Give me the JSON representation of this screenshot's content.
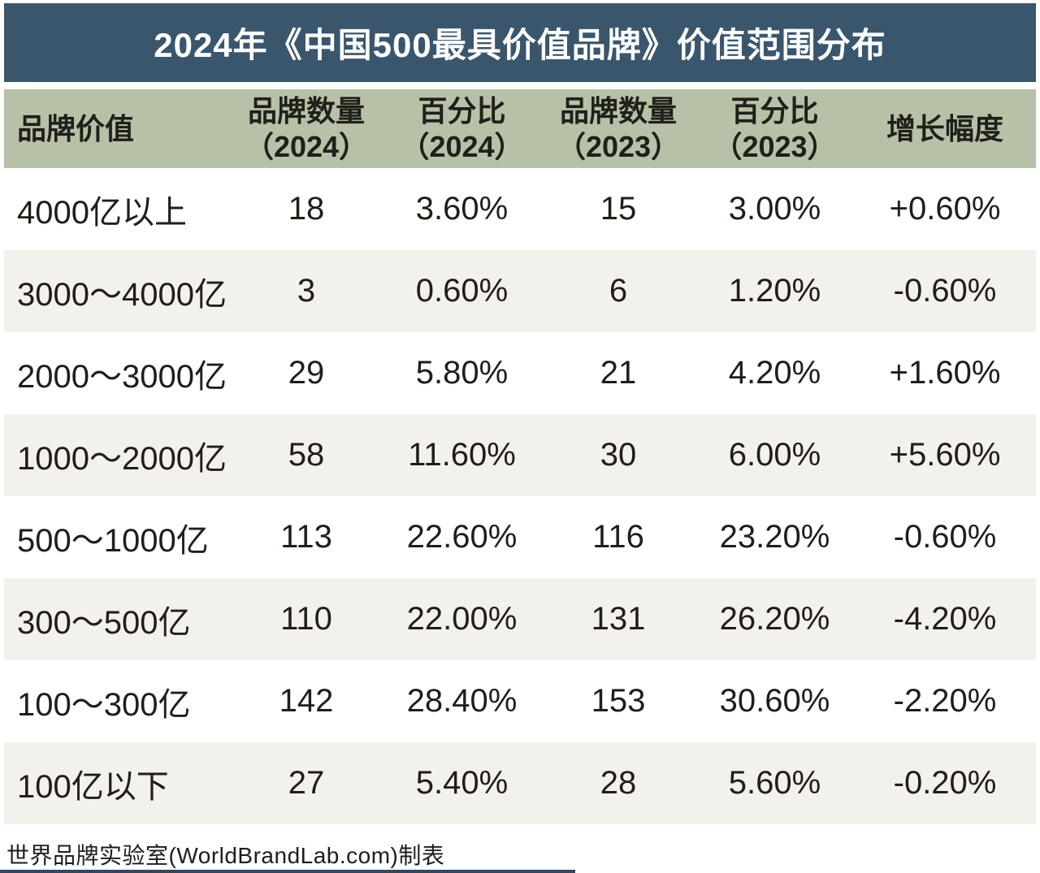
{
  "title": "2024年《中国500最具价值品牌》价值范围分布",
  "table": {
    "headers": [
      {
        "line1": "品牌价值",
        "line2": ""
      },
      {
        "line1": "品牌数量",
        "line2": "（2024）"
      },
      {
        "line1": "百分比",
        "line2": "（2024）"
      },
      {
        "line1": "品牌数量",
        "line2": "（2023）"
      },
      {
        "line1": "百分比",
        "line2": "（2023）"
      },
      {
        "line1": "增长幅度",
        "line2": ""
      }
    ],
    "rows": [
      [
        "4000亿以上",
        "18",
        "3.60%",
        "15",
        "3.00%",
        "+0.60%"
      ],
      [
        "3000～4000亿",
        "3",
        "0.60%",
        "6",
        "1.20%",
        "-0.60%"
      ],
      [
        "2000～3000亿",
        "29",
        "5.80%",
        "21",
        "4.20%",
        "+1.60%"
      ],
      [
        "1000～2000亿",
        "58",
        "11.60%",
        "30",
        "6.00%",
        "+5.60%"
      ],
      [
        "500～1000亿",
        "113",
        "22.60%",
        "116",
        "23.20%",
        "-0.60%"
      ],
      [
        "300～500亿",
        "110",
        "22.00%",
        "131",
        "26.20%",
        "-4.20%"
      ],
      [
        "100～300亿",
        "142",
        "28.40%",
        "153",
        "30.60%",
        "-2.20%"
      ],
      [
        "100亿以下",
        "27",
        "5.40%",
        "28",
        "5.60%",
        "-0.20%"
      ]
    ]
  },
  "footer": {
    "credit": "世界品牌实验室(WorldBrandLab.com)制表"
  },
  "colors": {
    "title_bar_bg": "#3a566d",
    "title_text": "#ffffff",
    "header_bg": "#b7c1a7",
    "row_bg": "#ffffff",
    "row_alt_bg": "#f2f1ec",
    "body_text": "#211d18",
    "bottom_strip": "#32495c"
  },
  "chart_data": {
    "type": "table",
    "title": "2024年《中国500最具价值品牌》价值范围分布",
    "columns": [
      "品牌价值",
      "品牌数量（2024）",
      "百分比（2024）",
      "品牌数量（2023）",
      "百分比（2023）",
      "增长幅度"
    ],
    "rows": [
      {
        "品牌价值": "4000亿以上",
        "品牌数量_2024": 18,
        "百分比_2024": "3.60%",
        "品牌数量_2023": 15,
        "百分比_2023": "3.00%",
        "增长幅度": "+0.60%"
      },
      {
        "品牌价值": "3000～4000亿",
        "品牌数量_2024": 3,
        "百分比_2024": "0.60%",
        "品牌数量_2023": 6,
        "百分比_2023": "1.20%",
        "增长幅度": "-0.60%"
      },
      {
        "品牌价值": "2000～3000亿",
        "品牌数量_2024": 29,
        "百分比_2024": "5.80%",
        "品牌数量_2023": 21,
        "百分比_2023": "4.20%",
        "增长幅度": "+1.60%"
      },
      {
        "品牌价值": "1000～2000亿",
        "品牌数量_2024": 58,
        "百分比_2024": "11.60%",
        "品牌数量_2023": 30,
        "百分比_2023": "6.00%",
        "增长幅度": "+5.60%"
      },
      {
        "品牌价值": "500～1000亿",
        "品牌数量_2024": 113,
        "百分比_2024": "22.60%",
        "品牌数量_2023": 116,
        "百分比_2023": "23.20%",
        "增长幅度": "-0.60%"
      },
      {
        "品牌价值": "300～500亿",
        "品牌数量_2024": 110,
        "百分比_2024": "22.00%",
        "品牌数量_2023": 131,
        "百分比_2023": "26.20%",
        "增长幅度": "-4.20%"
      },
      {
        "品牌价值": "100～300亿",
        "品牌数量_2024": 142,
        "百分比_2024": "28.40%",
        "品牌数量_2023": 153,
        "百分比_2023": "30.60%",
        "增长幅度": "-2.20%"
      },
      {
        "品牌价值": "100亿以下",
        "品牌数量_2024": 27,
        "百分比_2024": "5.40%",
        "品牌数量_2023": 28,
        "百分比_2023": "5.60%",
        "增长幅度": "-0.20%"
      }
    ],
    "source": "世界品牌实验室(WorldBrandLab.com)制表",
    "layout": {
      "striped": true,
      "header_position": "top",
      "first_column_align": "left",
      "other_columns_align": "center"
    }
  }
}
